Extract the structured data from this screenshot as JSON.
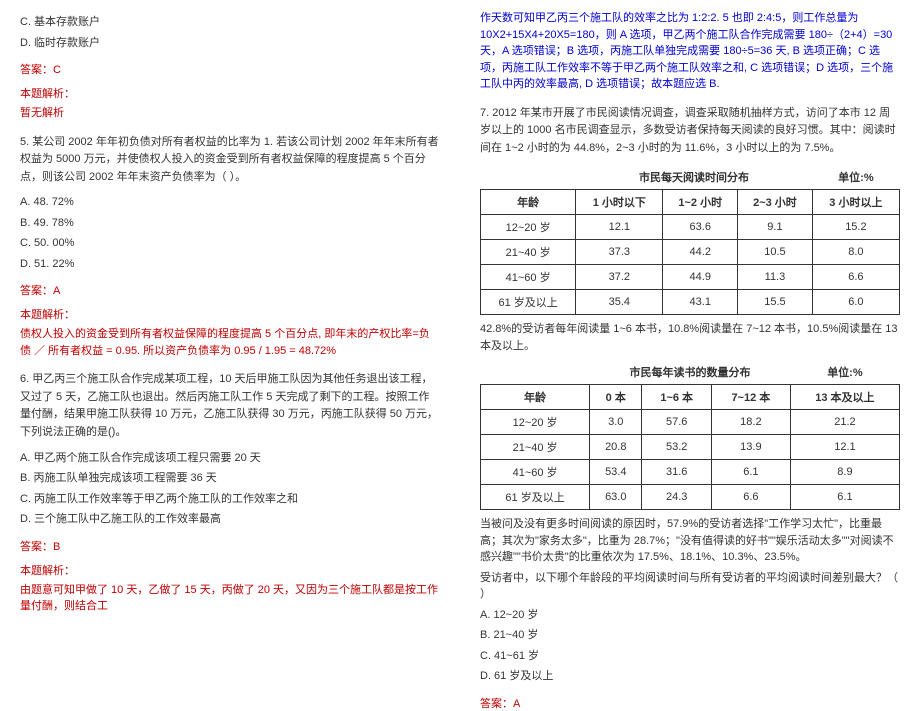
{
  "left": {
    "q4": {
      "opt_c": "C. 基本存款账户",
      "opt_d": "D. 临时存款账户",
      "answer": "答案：C",
      "explain_title": "本题解析：",
      "explain_text": "暂无解析"
    },
    "q5": {
      "stem": "5. 某公司 2002 年年初负债对所有者权益的比率为 1. 若该公司计划 2002 年年末所有者权益为 5000 万元，并使债权人投入的资金受到所有者权益保障的程度提高 5 个百分点，则该公司 2002 年年末资产负债率为（ ）。",
      "opt_a": "A. 48. 72%",
      "opt_b": "B. 49. 78%",
      "opt_c": "C. 50. 00%",
      "opt_d": "D. 51. 22%",
      "answer": "答案：A",
      "explain_title": "本题解析：",
      "explain_text": "债权人投入的资金受到所有者权益保障的程度提高 5 个百分点, 即年末的产权比率=负债 ／ 所有者权益 = 0.95. 所以资产负债率为 0.95 / 1.95 = 48.72%"
    },
    "q6": {
      "stem": "6. 甲乙丙三个施工队合作完成某项工程，10 天后甲施工队因为其他任务退出该工程，又过了 5 天，乙施工队也退出。然后丙施工队工作 5 天完成了剩下的工程。按照工作量付酬，结果甲施工队获得 10 万元，乙施工队获得 30 万元，丙施工队获得 50 万元，下列说法正确的是()。",
      "opt_a": "A. 甲乙两个施工队合作完成该项工程只需要 20 天",
      "opt_b": "B. 丙施工队单独完成该项工程需要 36 天",
      "opt_c": "C. 丙施工队工作效率等于甲乙两个施工队的工作效率之和",
      "opt_d": "D. 三个施工队中乙施工队的工作效率最高",
      "answer": "答案：B",
      "explain_title": "本题解析：",
      "explain_text": "由题意可知甲做了 10 天，乙做了 15 天，丙做了 20 天，又因为三个施工队都是按工作量付酬，则结合工"
    }
  },
  "right": {
    "blue_text": "作天数可知甲乙丙三个施工队的效率之比为 1:2:2. 5 也即 2:4:5，则工作总量为 10X2+15X4+20X5=180，则 A 选项，甲乙两个施工队合作完成需要 180÷（2+4）=30 天，A 选项错误；B 选项，丙施工队单独完成需要 180÷5=36 天, B 选项正确；C 选项，丙施工队工作效率不等于甲乙两个施工队效率之和, C 选项错误；D 选项，三个施工队中丙的效率最高, D 选项错误；故本题应选 B.",
    "q7": {
      "stem": "7. 2012 年某市开展了市民阅读情况调查，调查采取随机抽样方式，访问了本市 12 周岁以上的 1000 名市民调查显示，多数受访者保持每天阅读的良好习惯。其中：阅读时间在 1~2 小时的为 44.8%，2~3 小时的为 11.6%，3 小时以上的为 7.5%。",
      "after_t1": "42.8%的受访者每年阅读量 1~6 本书，10.8%阅读量在 7~12 本书，10.5%阅读量在 13 本及以上。",
      "after_t2_1": "当被问及没有更多时间阅读的原因时，57.9%的受访者选择\"工作学习太忙\"，比重最高；其次为\"家务太多\"，比重为 28.7%；\"没有值得读的好书\"\"娱乐活动太多\"\"对阅读不感兴趣\"\"书价太贵\"的比重依次为 17.5%、18.1%、10.3%、23.5%。",
      "after_t2_2": "受访者中，以下哪个年龄段的平均阅读时间与所有受访者的平均阅读时间差别最大？（ ）",
      "opt_a": "A. 12~20 岁",
      "opt_b": "B. 21~40 岁",
      "opt_c": "C. 41~61 岁",
      "opt_d": "D. 61 岁及以上",
      "answer": "答案：A"
    },
    "table1": {
      "title_left": "市民每天阅读时间分布",
      "title_right": "单位:%",
      "headers": [
        "年龄",
        "1 小时以下",
        "1~2 小时",
        "2~3 小时",
        "3 小时以上"
      ],
      "rows": [
        [
          "12~20 岁",
          "12.1",
          "63.6",
          "9.1",
          "15.2"
        ],
        [
          "21~40 岁",
          "37.3",
          "44.2",
          "10.5",
          "8.0"
        ],
        [
          "41~60 岁",
          "37.2",
          "44.9",
          "11.3",
          "6.6"
        ],
        [
          "61 岁及以上",
          "35.4",
          "43.1",
          "15.5",
          "6.0"
        ]
      ]
    },
    "table2": {
      "title_left": "市民每年读书的数量分布",
      "title_right": "单位:%",
      "headers": [
        "年龄",
        "0 本",
        "1~6 本",
        "7~12 本",
        "13 本及以上"
      ],
      "rows": [
        [
          "12~20 岁",
          "3.0",
          "57.6",
          "18.2",
          "21.2"
        ],
        [
          "21~40 岁",
          "20.8",
          "53.2",
          "13.9",
          "12.1"
        ],
        [
          "41~60 岁",
          "53.4",
          "31.6",
          "6.1",
          "8.9"
        ],
        [
          "61 岁及以上",
          "63.0",
          "24.3",
          "6.6",
          "6.1"
        ]
      ]
    }
  }
}
